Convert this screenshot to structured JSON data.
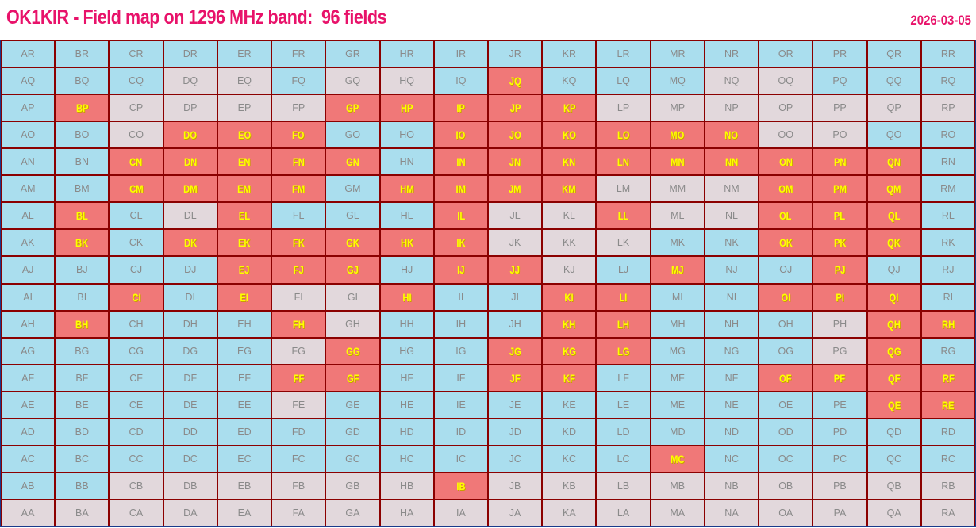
{
  "header": {
    "title": "OK1KIR - Field map on 1296 MHz band:  96 fields",
    "date": "2026-03-05"
  },
  "legend_colors": {
    "worked": "#f07878",
    "ocean": "#aadeee",
    "land": "#e2d8dc",
    "grid": "#8b0000",
    "title": "#e8126a",
    "worked_label": "#ffff00"
  },
  "status_codes": {
    "w": "worked",
    "b": "ocean",
    "l": "land"
  },
  "rows": [
    {
      "labels": [
        "AR",
        "BR",
        "CR",
        "DR",
        "ER",
        "FR",
        "GR",
        "HR",
        "IR",
        "JR",
        "KR",
        "LR",
        "MR",
        "NR",
        "OR",
        "PR",
        "QR",
        "RR"
      ],
      "status": "bbbbbbbbbbbbbbbbbb"
    },
    {
      "labels": [
        "AQ",
        "BQ",
        "CQ",
        "DQ",
        "EQ",
        "FQ",
        "GQ",
        "HQ",
        "IQ",
        "JQ",
        "KQ",
        "LQ",
        "MQ",
        "NQ",
        "OQ",
        "PQ",
        "QQ",
        "RQ"
      ],
      "status": "bbbllbllbwbbbllbbb"
    },
    {
      "labels": [
        "AP",
        "BP",
        "CP",
        "DP",
        "EP",
        "FP",
        "GP",
        "HP",
        "IP",
        "JP",
        "KP",
        "LP",
        "MP",
        "NP",
        "OP",
        "PP",
        "QP",
        "RP"
      ],
      "status": "bwllllwwwwwlllllll"
    },
    {
      "labels": [
        "AO",
        "BO",
        "CO",
        "DO",
        "EO",
        "FO",
        "GO",
        "HO",
        "IO",
        "JO",
        "KO",
        "LO",
        "MO",
        "NO",
        "OO",
        "PO",
        "QO",
        "RO"
      ],
      "status": "bblwwwbbwwwwwwllbb"
    },
    {
      "labels": [
        "AN",
        "BN",
        "CN",
        "DN",
        "EN",
        "FN",
        "GN",
        "HN",
        "IN",
        "JN",
        "KN",
        "LN",
        "MN",
        "NN",
        "ON",
        "PN",
        "QN",
        "RN"
      ],
      "status": "bbwwwwwbwwwwwwwwwb"
    },
    {
      "labels": [
        "AM",
        "BM",
        "CM",
        "DM",
        "EM",
        "FM",
        "GM",
        "HM",
        "IM",
        "JM",
        "KM",
        "LM",
        "MM",
        "NM",
        "OM",
        "PM",
        "QM",
        "RM"
      ],
      "status": "bbwwwwbwwwwlllwwwb"
    },
    {
      "labels": [
        "AL",
        "BL",
        "CL",
        "DL",
        "EL",
        "FL",
        "GL",
        "HL",
        "IL",
        "JL",
        "KL",
        "LL",
        "ML",
        "NL",
        "OL",
        "PL",
        "QL",
        "RL"
      ],
      "status": "bwblwbbbwllwllwwwb"
    },
    {
      "labels": [
        "AK",
        "BK",
        "CK",
        "DK",
        "EK",
        "FK",
        "GK",
        "HK",
        "IK",
        "JK",
        "KK",
        "LK",
        "MK",
        "NK",
        "OK",
        "PK",
        "QK",
        "RK"
      ],
      "status": "bwbwwwwwwlllbbwwwb"
    },
    {
      "labels": [
        "AJ",
        "BJ",
        "CJ",
        "DJ",
        "EJ",
        "FJ",
        "GJ",
        "HJ",
        "IJ",
        "JJ",
        "KJ",
        "LJ",
        "MJ",
        "NJ",
        "OJ",
        "PJ",
        "QJ",
        "RJ"
      ],
      "status": "bbbbwwwbwwlbwbbwbb"
    },
    {
      "labels": [
        "AI",
        "BI",
        "CI",
        "DI",
        "EI",
        "FI",
        "GI",
        "HI",
        "II",
        "JI",
        "KI",
        "LI",
        "MI",
        "NI",
        "OI",
        "PI",
        "QI",
        "RI"
      ],
      "status": "bbwbwllwbbwwbbwwwb"
    },
    {
      "labels": [
        "AH",
        "BH",
        "CH",
        "DH",
        "EH",
        "FH",
        "GH",
        "HH",
        "IH",
        "JH",
        "KH",
        "LH",
        "MH",
        "NH",
        "OH",
        "PH",
        "QH",
        "RH"
      ],
      "status": "bwbbbwlbbbwwbbblww"
    },
    {
      "labels": [
        "AG",
        "BG",
        "CG",
        "DG",
        "EG",
        "FG",
        "GG",
        "HG",
        "IG",
        "JG",
        "KG",
        "LG",
        "MG",
        "NG",
        "OG",
        "PG",
        "QG",
        "RG"
      ],
      "status": "bbbbblwbbwwwbbblwb"
    },
    {
      "labels": [
        "AF",
        "BF",
        "CF",
        "DF",
        "EF",
        "FF",
        "GF",
        "HF",
        "IF",
        "JF",
        "KF",
        "LF",
        "MF",
        "NF",
        "OF",
        "PF",
        "QF",
        "RF"
      ],
      "status": "bbbbbwwbbwwbbbwwww"
    },
    {
      "labels": [
        "AE",
        "BE",
        "CE",
        "DE",
        "EE",
        "FE",
        "GE",
        "HE",
        "IE",
        "JE",
        "KE",
        "LE",
        "ME",
        "NE",
        "OE",
        "PE",
        "QE",
        "RE"
      ],
      "status": "bbbbblbbbbbbbbbbww"
    },
    {
      "labels": [
        "AD",
        "BD",
        "CD",
        "DD",
        "ED",
        "FD",
        "GD",
        "HD",
        "ID",
        "JD",
        "KD",
        "LD",
        "MD",
        "ND",
        "OD",
        "PD",
        "QD",
        "RD"
      ],
      "status": "bbbbbbbbbbbbbbbbbb"
    },
    {
      "labels": [
        "AC",
        "BC",
        "CC",
        "DC",
        "EC",
        "FC",
        "GC",
        "HC",
        "IC",
        "JC",
        "KC",
        "LC",
        "MC",
        "NC",
        "OC",
        "PC",
        "QC",
        "RC"
      ],
      "status": "bbbbbbbbbbbbwbbbbb"
    },
    {
      "labels": [
        "AB",
        "BB",
        "CB",
        "DB",
        "EB",
        "FB",
        "GB",
        "HB",
        "IB",
        "JB",
        "KB",
        "LB",
        "MB",
        "NB",
        "OB",
        "PB",
        "QB",
        "RB"
      ],
      "status": "bbllllllwlllllllll"
    },
    {
      "labels": [
        "AA",
        "BA",
        "CA",
        "DA",
        "EA",
        "FA",
        "GA",
        "HA",
        "IA",
        "JA",
        "KA",
        "LA",
        "MA",
        "NA",
        "OA",
        "PA",
        "QA",
        "RA"
      ],
      "status": "llllllllllllllllll"
    }
  ]
}
